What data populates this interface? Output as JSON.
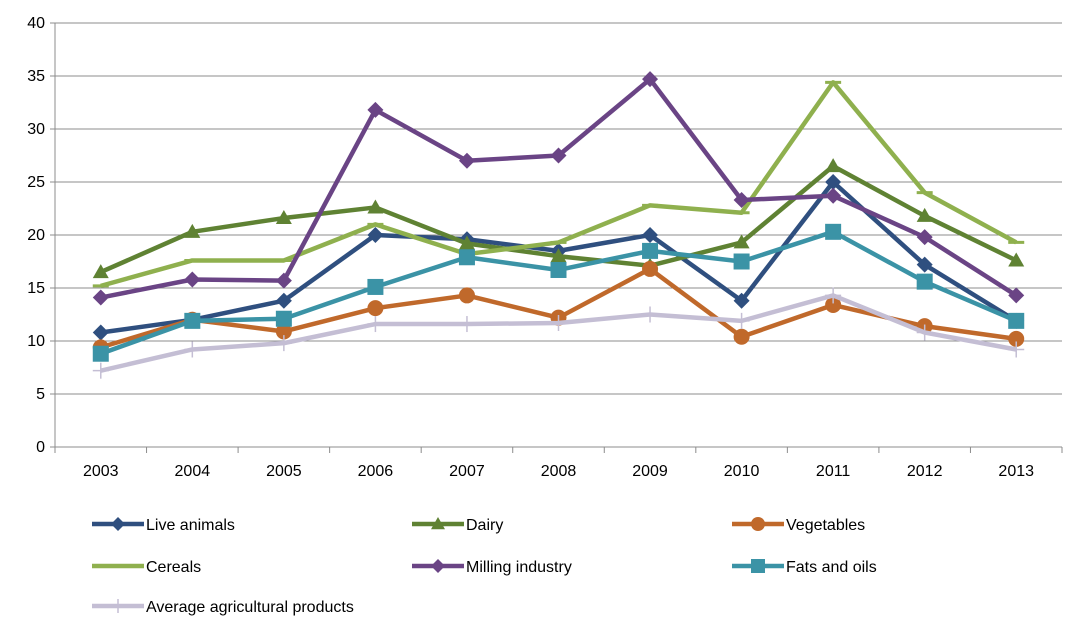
{
  "chart_data": {
    "type": "line",
    "title": "",
    "xlabel": "",
    "ylabel": "",
    "ylim": [
      0,
      40
    ],
    "yticks": [
      0,
      5,
      10,
      15,
      20,
      25,
      30,
      35,
      40
    ],
    "grid": true,
    "legend_position": "bottom",
    "categories": [
      "2003",
      "2004",
      "2005",
      "2006",
      "2007",
      "2008",
      "2009",
      "2010",
      "2011",
      "2012",
      "2013"
    ],
    "series": [
      {
        "name": "Live animals",
        "color": "#2f4f7f",
        "marker": "diamond",
        "values": [
          10.8,
          12.0,
          13.8,
          20.0,
          19.6,
          18.5,
          20.0,
          13.8,
          25.0,
          17.2,
          11.9
        ]
      },
      {
        "name": "Dairy",
        "color": "#5f8233",
        "marker": "triangle",
        "values": [
          16.5,
          20.3,
          21.6,
          22.6,
          19.2,
          18.0,
          17.1,
          19.3,
          26.5,
          21.8,
          17.6
        ]
      },
      {
        "name": "Vegetables",
        "color": "#c0692b",
        "marker": "circle",
        "values": [
          9.4,
          12.0,
          10.9,
          13.1,
          14.3,
          12.2,
          16.8,
          10.4,
          13.4,
          11.4,
          10.2
        ]
      },
      {
        "name": "Cereals",
        "color": "#8fb04e",
        "marker": "dash",
        "values": [
          15.2,
          17.6,
          17.6,
          21.0,
          18.2,
          19.3,
          22.8,
          22.1,
          34.4,
          24.0,
          19.3
        ]
      },
      {
        "name": "Milling industry",
        "color": "#6a4485",
        "marker": "diamond",
        "values": [
          14.1,
          15.8,
          15.7,
          31.8,
          27.0,
          27.5,
          34.7,
          23.3,
          23.7,
          19.8,
          14.3
        ]
      },
      {
        "name": "Fats and oils",
        "color": "#3b93a6",
        "marker": "square",
        "values": [
          8.8,
          11.9,
          12.1,
          15.1,
          17.9,
          16.7,
          18.5,
          17.5,
          20.3,
          15.6,
          11.9
        ]
      },
      {
        "name": "Average agricultural products",
        "color": "#c4bed4",
        "marker": "plus",
        "values": [
          7.2,
          9.2,
          9.8,
          11.6,
          11.6,
          11.7,
          12.5,
          11.9,
          14.3,
          10.8,
          9.2
        ]
      }
    ]
  }
}
